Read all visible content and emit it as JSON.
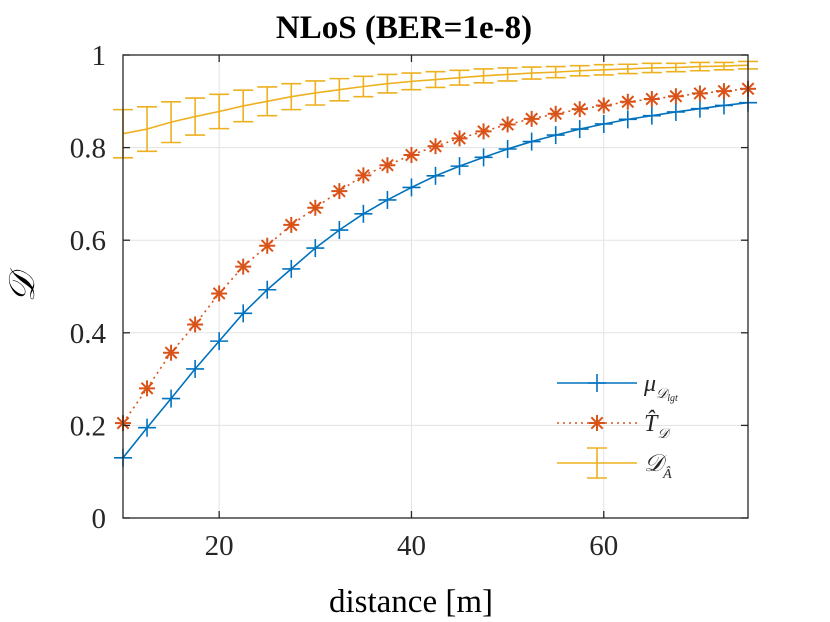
{
  "chart_data": {
    "type": "line",
    "title": "NLoS (BER=1e-8)",
    "xlabel": "distance [m]",
    "ylabel": "𝒟",
    "xlim": [
      10,
      75
    ],
    "ylim": [
      0,
      1
    ],
    "xticks": [
      20,
      40,
      60
    ],
    "xtick_labels": [
      "20",
      "40",
      "60"
    ],
    "yticks": [
      0,
      0.2,
      0.4,
      0.6,
      0.8,
      1
    ],
    "ytick_labels": [
      "0",
      "0.2",
      "0.4",
      "0.6",
      "0.8",
      "1"
    ],
    "grid": true,
    "legend_position": "bottom-right",
    "x": [
      10,
      12.5,
      15,
      17.5,
      20,
      22.5,
      25,
      27.5,
      30,
      32.5,
      35,
      37.5,
      40,
      42.5,
      45,
      47.5,
      50,
      52.5,
      55,
      57.5,
      60,
      62.5,
      65,
      67.5,
      70,
      72.5,
      75
    ],
    "series": [
      {
        "name": "mu_D_lgt",
        "legend_main": "μ",
        "legend_sub1": "𝒟",
        "legend_sub2": "lgt",
        "color": "#0072BD",
        "marker": "+",
        "linestyle": "solid",
        "values": [
          0.13,
          0.195,
          0.258,
          0.322,
          0.382,
          0.442,
          0.493,
          0.538,
          0.583,
          0.622,
          0.657,
          0.687,
          0.714,
          0.739,
          0.76,
          0.779,
          0.797,
          0.813,
          0.827,
          0.84,
          0.851,
          0.861,
          0.869,
          0.877,
          0.884,
          0.891,
          0.897
        ]
      },
      {
        "name": "T_hat_D",
        "legend_main": "T̂",
        "legend_sub1": "𝒟",
        "legend_sub2": "",
        "color": "#D95319",
        "marker": "*",
        "linestyle": "dotted",
        "values": [
          0.205,
          0.28,
          0.357,
          0.418,
          0.485,
          0.543,
          0.588,
          0.633,
          0.67,
          0.706,
          0.74,
          0.762,
          0.784,
          0.803,
          0.82,
          0.835,
          0.85,
          0.862,
          0.873,
          0.883,
          0.891,
          0.899,
          0.905,
          0.911,
          0.917,
          0.922,
          0.927
        ]
      },
      {
        "name": "D_A_hat",
        "legend_main": "𝒟",
        "legend_sub1": "Â",
        "legend_sub2": "",
        "color": "#EDB120",
        "marker": "errorbar",
        "linestyle": "solid",
        "values": [
          0.83,
          0.84,
          0.855,
          0.867,
          0.878,
          0.89,
          0.9,
          0.91,
          0.918,
          0.925,
          0.932,
          0.938,
          0.943,
          0.947,
          0.951,
          0.955,
          0.958,
          0.961,
          0.963,
          0.966,
          0.968,
          0.97,
          0.972,
          0.973,
          0.975,
          0.976,
          0.978
        ],
        "error": [
          0.052,
          0.048,
          0.044,
          0.04,
          0.037,
          0.034,
          0.031,
          0.028,
          0.026,
          0.024,
          0.022,
          0.02,
          0.018,
          0.017,
          0.016,
          0.015,
          0.014,
          0.013,
          0.012,
          0.011,
          0.011,
          0.01,
          0.01,
          0.009,
          0.009,
          0.008,
          0.008
        ]
      }
    ]
  }
}
